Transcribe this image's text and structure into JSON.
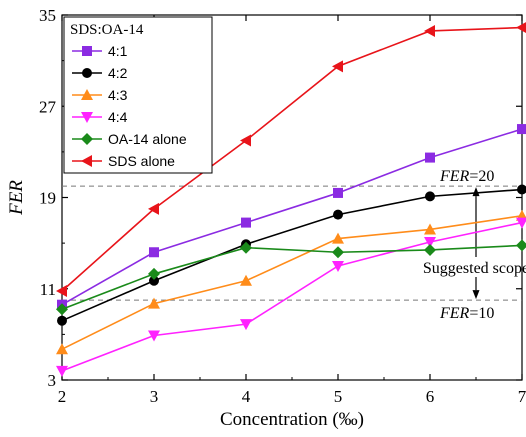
{
  "chart_data": {
    "type": "line",
    "title": "",
    "xlabel": "Concentration (‰)",
    "ylabel": "FER",
    "x": [
      2,
      3,
      4,
      5,
      6,
      7
    ],
    "xlim": [
      2,
      7
    ],
    "ylim": [
      3,
      35
    ],
    "xticks": [
      "2",
      "3",
      "4",
      "5",
      "6",
      "7"
    ],
    "yticks": [
      "3",
      "11",
      "19",
      "27",
      "35"
    ],
    "grid": false,
    "legend": {
      "title": "SDS:OA-14",
      "placement": "top-left"
    },
    "series": [
      {
        "name": "4:1",
        "color": "#8B2BE2",
        "marker": "square",
        "values": [
          9.6,
          14.2,
          16.8,
          19.4,
          22.5,
          25.0
        ]
      },
      {
        "name": "4:2",
        "color": "#000000",
        "marker": "circle",
        "values": [
          8.2,
          11.7,
          14.9,
          17.5,
          19.1,
          19.7
        ]
      },
      {
        "name": "4:3",
        "color": "#FF8C1A",
        "marker": "triangle-up",
        "values": [
          5.7,
          9.7,
          11.7,
          15.4,
          16.2,
          17.4
        ]
      },
      {
        "name": "4:4",
        "color": "#FF22FF",
        "marker": "triangle-down",
        "values": [
          3.8,
          6.9,
          7.9,
          13.0,
          15.1,
          16.8
        ]
      },
      {
        "name": "OA-14 alone",
        "color": "#1A8A1A",
        "marker": "diamond",
        "values": [
          9.2,
          12.3,
          14.6,
          14.2,
          14.4,
          14.8
        ]
      },
      {
        "name": "SDS alone",
        "color": "#E8141A",
        "marker": "triangle-left",
        "values": [
          10.8,
          18.0,
          24.0,
          30.5,
          33.6,
          33.9
        ]
      }
    ],
    "reference_lines": [
      {
        "y": 20,
        "label_italic": "FER",
        "label_rest": "=20"
      },
      {
        "y": 10,
        "label_italic": "FER",
        "label_rest": "=10"
      }
    ],
    "annotation": {
      "text": "Suggested scope",
      "x": 6.5
    }
  }
}
